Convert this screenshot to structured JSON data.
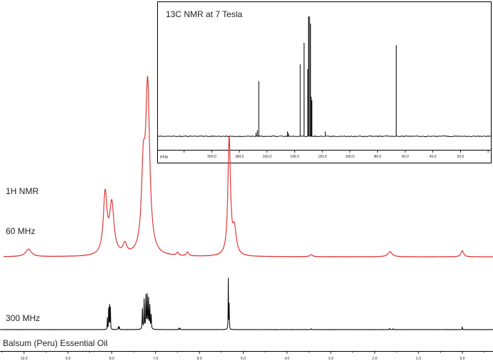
{
  "chart_data": [
    {
      "type": "line",
      "title": "13C NMR at 7 Tesla",
      "xlabel": "PPM",
      "x_reversed": true,
      "xlim": [
        239,
        -2
      ],
      "x_ticks": [
        220,
        200,
        180,
        160,
        140,
        120,
        100,
        80,
        60,
        40,
        20,
        0
      ],
      "x_tick_labels": [
        "",
        "200.0",
        "180.0",
        "160.0",
        "140.0",
        "120.0",
        "100.0",
        "80.0",
        "60.0",
        "40.0",
        "20.0",
        ""
      ],
      "ylim": [
        0,
        1
      ],
      "color": "#000000",
      "peaks": [
        {
          "ppm": 168.0,
          "height": 0.03
        },
        {
          "ppm": 167.0,
          "height": 0.05
        },
        {
          "ppm": 166.0,
          "height": 0.46
        },
        {
          "ppm": 145.2,
          "height": 0.04
        },
        {
          "ppm": 144.6,
          "height": 0.025
        },
        {
          "ppm": 136.0,
          "height": 0.6
        },
        {
          "ppm": 133.2,
          "height": 0.78
        },
        {
          "ppm": 130.5,
          "height": 0.56
        },
        {
          "ppm": 130.0,
          "height": 1.0
        },
        {
          "ppm": 129.3,
          "height": 1.0
        },
        {
          "ppm": 128.5,
          "height": 0.94
        },
        {
          "ppm": 128.1,
          "height": 0.33
        },
        {
          "ppm": 127.5,
          "height": 0.3
        },
        {
          "ppm": 117.8,
          "height": 0.04
        },
        {
          "ppm": 66.5,
          "height": 0.76
        }
      ]
    },
    {
      "type": "line",
      "xlabel": "",
      "x_reversed": true,
      "xlim": [
        10.55,
        -0.7
      ],
      "x_ticks": [
        10,
        9,
        8,
        7,
        6,
        5,
        4,
        3,
        2,
        1,
        0
      ],
      "x_tick_labels": [
        "10.0",
        "9.0",
        "8.0",
        "7.0",
        "6.0",
        "5.0",
        "4.0",
        "3.0",
        "2.0",
        "1.0",
        "0.0"
      ],
      "series": [
        {
          "name": "60 MHz",
          "color": "#e03a3a",
          "peaks": [
            {
              "ppm": 9.9,
              "height": 0.03,
              "width": 0.08
            },
            {
              "ppm": 8.15,
              "height": 0.24,
              "width": 0.05
            },
            {
              "ppm": 8.0,
              "height": 0.2,
              "width": 0.06
            },
            {
              "ppm": 7.7,
              "height": 0.04,
              "width": 0.05
            },
            {
              "ppm": 7.28,
              "height": 0.3,
              "width": 0.05
            },
            {
              "ppm": 7.18,
              "height": 0.66,
              "width": 0.055
            },
            {
              "ppm": 6.5,
              "height": 0.012,
              "width": 0.03
            },
            {
              "ppm": 6.27,
              "height": 0.015,
              "width": 0.03
            },
            {
              "ppm": 5.32,
              "height": 0.47,
              "width": 0.035
            },
            {
              "ppm": 5.2,
              "height": 0.1,
              "width": 0.05
            },
            {
              "ppm": 3.45,
              "height": 0.008,
              "width": 0.04
            },
            {
              "ppm": 1.65,
              "height": 0.02,
              "width": 0.06
            },
            {
              "ppm": 0.0,
              "height": 0.025,
              "width": 0.035
            }
          ]
        },
        {
          "name": "300 MHz",
          "color": "#000000",
          "peaks": [
            {
              "ppm": 8.1,
              "height": 0.14,
              "width": 0.004
            },
            {
              "ppm": 8.07,
              "height": 0.3,
              "width": 0.004
            },
            {
              "ppm": 8.05,
              "height": 0.32,
              "width": 0.004
            },
            {
              "ppm": 8.03,
              "height": 0.28,
              "width": 0.004
            },
            {
              "ppm": 7.85,
              "height": 0.03,
              "width": 0.005
            },
            {
              "ppm": 7.83,
              "height": 0.04,
              "width": 0.005
            },
            {
              "ppm": 7.3,
              "height": 0.26,
              "width": 0.006
            },
            {
              "ppm": 7.26,
              "height": 0.36,
              "width": 0.006
            },
            {
              "ppm": 7.22,
              "height": 0.4,
              "width": 0.006
            },
            {
              "ppm": 7.19,
              "height": 0.42,
              "width": 0.006
            },
            {
              "ppm": 7.16,
              "height": 0.38,
              "width": 0.006
            },
            {
              "ppm": 7.13,
              "height": 0.28,
              "width": 0.006
            },
            {
              "ppm": 7.1,
              "height": 0.18,
              "width": 0.006
            },
            {
              "ppm": 6.47,
              "height": 0.02,
              "width": 0.004
            },
            {
              "ppm": 6.44,
              "height": 0.02,
              "width": 0.004
            },
            {
              "ppm": 5.34,
              "height": 0.64,
              "width": 0.004
            },
            {
              "ppm": 5.32,
              "height": 0.3,
              "width": 0.004
            },
            {
              "ppm": 3.45,
              "height": 0.01,
              "width": 0.005
            },
            {
              "ppm": 1.66,
              "height": 0.015,
              "width": 0.005
            },
            {
              "ppm": 1.58,
              "height": 0.01,
              "width": 0.005
            },
            {
              "ppm": 0.0,
              "height": 0.035,
              "width": 0.004
            }
          ]
        }
      ]
    }
  ],
  "labels": {
    "h_nmr": "1H NMR",
    "mhz60": "60 MHz",
    "mhz300": "300 MHz",
    "sample": "Balsum (Peru) Essential Oil"
  }
}
